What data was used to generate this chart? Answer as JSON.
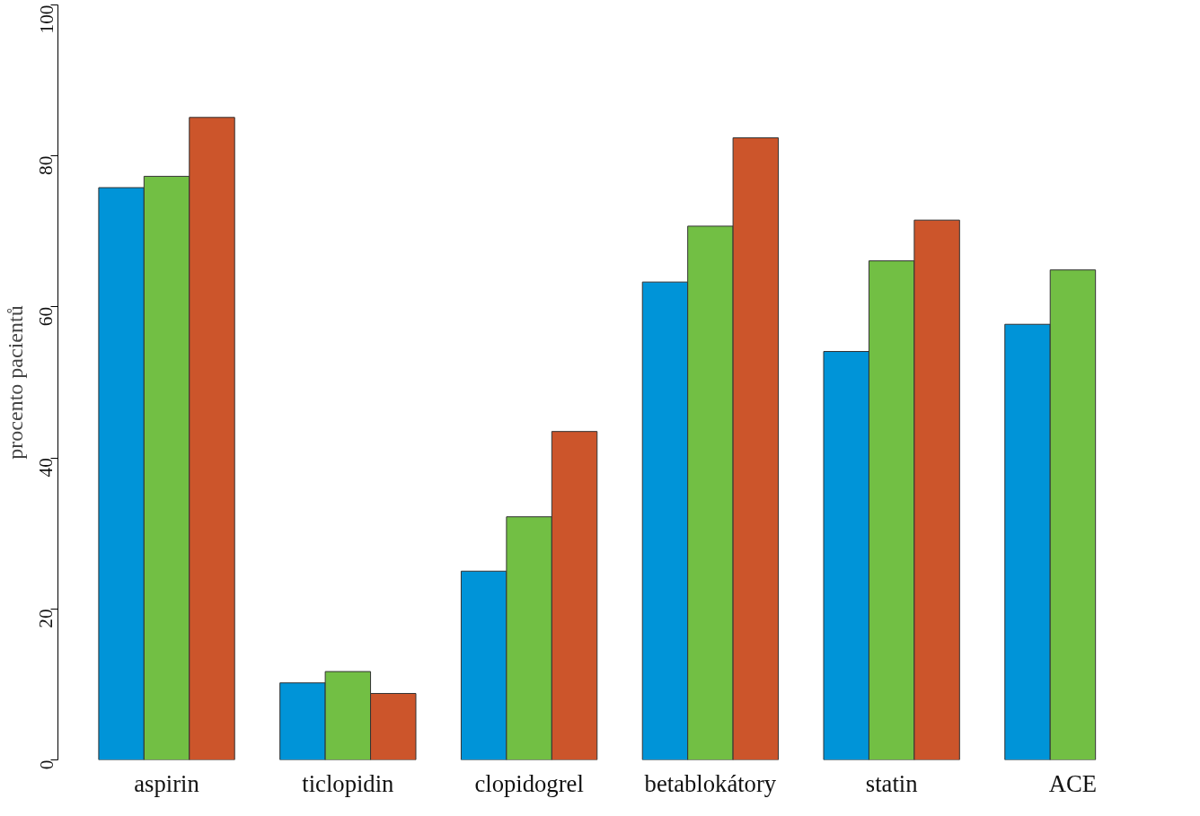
{
  "chart_data": {
    "type": "bar",
    "ylabel": "procento pacientů",
    "categories": [
      "aspirin",
      "ticlopidin",
      "clopidogrel",
      "betablokátory",
      "statin",
      "ACE"
    ],
    "series": [
      {
        "color": "#0094d8",
        "values": [
          75.8,
          10.2,
          25.0,
          63.3,
          54.1,
          57.7
        ]
      },
      {
        "color": "#72bf44",
        "values": [
          77.3,
          11.7,
          32.2,
          70.7,
          66.1,
          64.9
        ]
      },
      {
        "color": "#cc552b",
        "values": [
          85.1,
          8.8,
          43.5,
          82.4,
          71.5,
          null
        ]
      }
    ],
    "ylim": [
      0,
      100
    ],
    "yticks": [
      0,
      20,
      40,
      60,
      80,
      100
    ],
    "grid": false
  }
}
